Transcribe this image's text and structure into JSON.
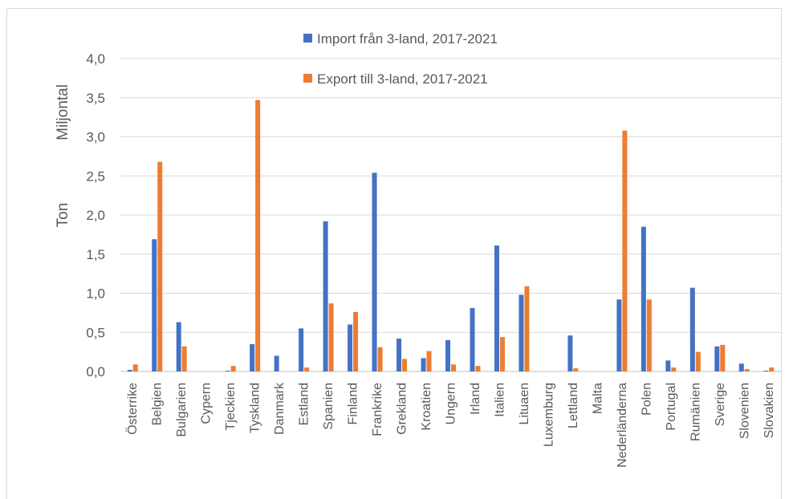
{
  "chart_data": {
    "type": "bar",
    "title": "",
    "ylabel": "Ton",
    "ylabel_unit": "Miljontal",
    "xlabel": "",
    "ylim": [
      0,
      4
    ],
    "yticks": [
      "0,0",
      "0,5",
      "1,0",
      "1,5",
      "2,0",
      "2,5",
      "3,0",
      "3,5",
      "4,0"
    ],
    "grid": true,
    "legend_position": "top",
    "categories": [
      "Österrike",
      "Belgien",
      "Bulgarien",
      "Cypern",
      "Tjeckien",
      "Tyskland",
      "Danmark",
      "Estland",
      "Spanien",
      "Finland",
      "Frankrike",
      "Grekland",
      "Kroatien",
      "Ungern",
      "Irland",
      "Italien",
      "Lituaen",
      "Luxemburg",
      "Lettland",
      "Malta",
      "Nederländerna",
      "Polen",
      "Portugal",
      "Rumänien",
      "Sverige",
      "Slovenien",
      "Slovakien"
    ],
    "series": [
      {
        "name": "Import från 3-land, 2017-2021",
        "color": "#4472c4",
        "values": [
          0.02,
          1.69,
          0.63,
          0.0,
          0.01,
          0.35,
          0.2,
          0.55,
          1.92,
          0.6,
          2.54,
          0.42,
          0.17,
          0.4,
          0.81,
          1.61,
          0.98,
          0.0,
          0.46,
          0.0,
          0.92,
          1.85,
          0.14,
          1.07,
          0.32,
          0.1,
          0.01
        ]
      },
      {
        "name": "Export till 3-land, 2017-2021",
        "color": "#ed7d31",
        "values": [
          0.09,
          2.68,
          0.32,
          0.0,
          0.07,
          3.47,
          0.0,
          0.05,
          0.87,
          0.76,
          0.31,
          0.16,
          0.26,
          0.09,
          0.07,
          0.44,
          1.09,
          0.0,
          0.04,
          0.0,
          3.08,
          0.92,
          0.05,
          0.25,
          0.34,
          0.03,
          0.05
        ]
      }
    ]
  }
}
